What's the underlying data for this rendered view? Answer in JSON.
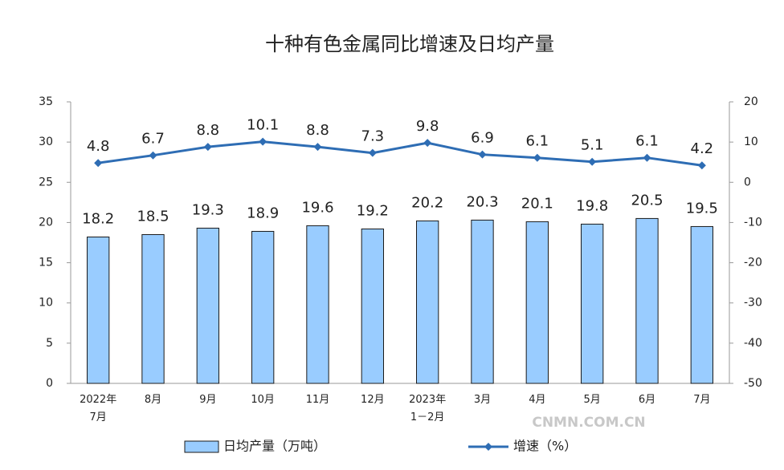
{
  "chart_data": {
    "type": "bar-line",
    "title": "十种有色金属同比增速及日均产量",
    "categories": [
      "2022年\n7月",
      "8月",
      "9月",
      "10月",
      "11月",
      "12月",
      "2023年\n1－2月",
      "3月",
      "4月",
      "5月",
      "6月",
      "7月"
    ],
    "series": [
      {
        "name": "日均产量（万吨）",
        "type": "bar",
        "color": "#99ccff",
        "values": [
          18.2,
          18.5,
          19.3,
          18.9,
          19.6,
          19.2,
          20.2,
          20.3,
          20.1,
          19.8,
          20.5,
          19.5
        ]
      },
      {
        "name": "增速（%）",
        "type": "line",
        "axis": "y2",
        "color": "#2e6db4",
        "values": [
          4.8,
          6.7,
          8.8,
          10.1,
          8.8,
          7.3,
          9.8,
          6.9,
          6.1,
          5.1,
          6.1,
          4.2
        ]
      }
    ],
    "ylim": [
      0,
      35
    ],
    "yticks": [
      0,
      5,
      10,
      15,
      20,
      25,
      30,
      35
    ],
    "y2lim": [
      -50,
      20
    ],
    "y2ticks": [
      -50,
      -40,
      -30,
      -20,
      -10,
      0,
      10,
      20
    ],
    "watermark": "CNMN.COM.CN"
  }
}
